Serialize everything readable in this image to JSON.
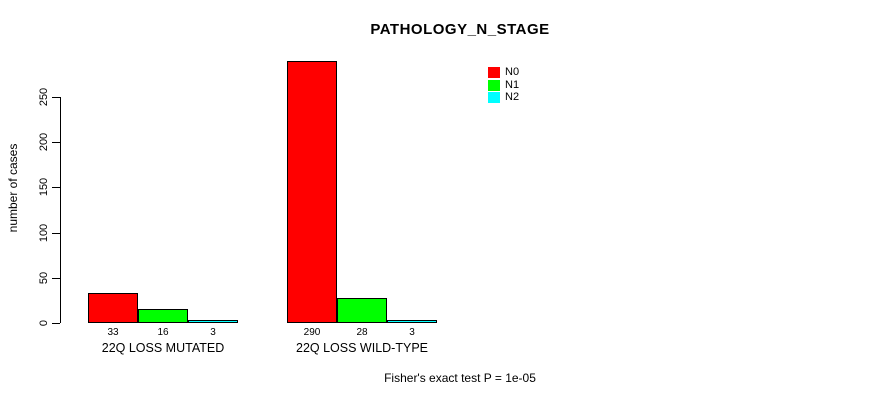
{
  "chart_data": {
    "type": "bar",
    "title": "PATHOLOGY_N_STAGE",
    "ylabel": "number of cases",
    "xlabel": "",
    "categories": [
      "22Q LOSS MUTATED",
      "22Q LOSS WILD-TYPE"
    ],
    "series": [
      {
        "name": "N0",
        "color": "#ff0000",
        "values": [
          33,
          290
        ]
      },
      {
        "name": "N1",
        "color": "#00ff00",
        "values": [
          16,
          28
        ]
      },
      {
        "name": "N2",
        "color": "#00ffff",
        "values": [
          3,
          3
        ]
      }
    ],
    "value_labels": [
      [
        "33",
        "16",
        "3"
      ],
      [
        "290",
        "28",
        "3"
      ]
    ],
    "yticks": [
      0,
      50,
      100,
      150,
      200,
      250
    ],
    "ylim": [
      0,
      290
    ],
    "grid": false,
    "legend_position": "top-right",
    "bar_border_color": "#000000",
    "background_color": "#ffffff"
  },
  "footer": {
    "text": "Fisher's exact test P = 1e-05"
  }
}
